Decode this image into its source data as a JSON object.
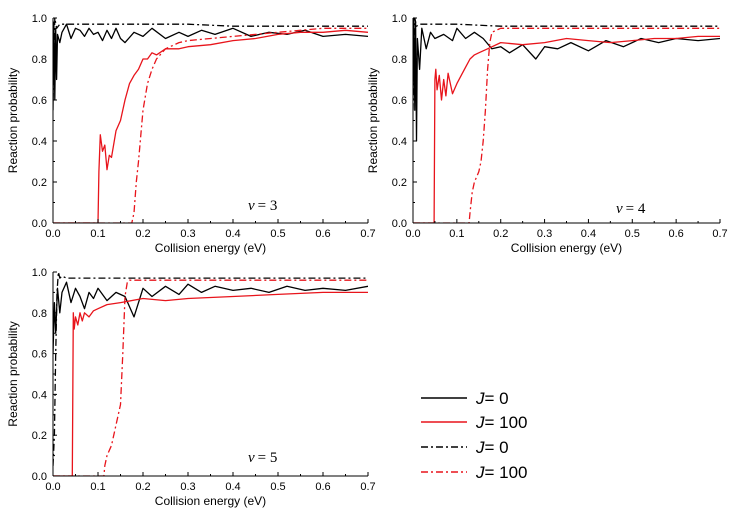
{
  "chart_data": {
    "type": "line",
    "legend": {
      "position": "bottom-right",
      "entries": [
        {
          "symbol": "J",
          "text": "= 0",
          "color": "#000000",
          "style": "solid"
        },
        {
          "symbol": "J",
          "text": "= 100",
          "color": "#e8141b",
          "style": "solid"
        },
        {
          "symbol": "J",
          "text": "= 0",
          "color": "#000000",
          "style": "dashdot"
        },
        {
          "symbol": "J",
          "text": "= 100",
          "color": "#e8141b",
          "style": "dashdot"
        }
      ]
    },
    "panels": [
      {
        "label_var": "v",
        "label_value": "= 3",
        "xlabel": "Collision energy (eV)",
        "ylabel": "Reaction probability",
        "xlim": [
          0.0,
          0.7
        ],
        "ylim": [
          0.0,
          1.0
        ],
        "xticks": [
          "0.0",
          "0.1",
          "0.2",
          "0.3",
          "0.4",
          "0.5",
          "0.6",
          "0.7"
        ],
        "yticks": [
          "0.0",
          "0.2",
          "0.4",
          "0.6",
          "0.8",
          "1.0"
        ],
        "series": [
          {
            "name": "J=0 (solid)",
            "color": "#000000",
            "style": "solid",
            "x": [
              0.0,
              0.002,
              0.004,
              0.006,
              0.008,
              0.01,
              0.015,
              0.02,
              0.03,
              0.04,
              0.05,
              0.06,
              0.07,
              0.08,
              0.09,
              0.1,
              0.11,
              0.12,
              0.13,
              0.14,
              0.15,
              0.16,
              0.18,
              0.2,
              0.22,
              0.25,
              0.28,
              0.3,
              0.33,
              0.36,
              0.4,
              0.44,
              0.48,
              0.52,
              0.56,
              0.6,
              0.65,
              0.7
            ],
            "y": [
              0.55,
              0.98,
              0.6,
              0.95,
              0.7,
              0.92,
              0.88,
              0.93,
              0.97,
              0.9,
              0.95,
              0.94,
              0.91,
              0.95,
              0.92,
              0.93,
              0.89,
              0.94,
              0.9,
              0.95,
              0.9,
              0.88,
              0.93,
              0.91,
              0.95,
              0.9,
              0.93,
              0.91,
              0.94,
              0.92,
              0.95,
              0.91,
              0.93,
              0.92,
              0.94,
              0.91,
              0.92,
              0.91
            ]
          },
          {
            "name": "J=100 (solid)",
            "color": "#e8141b",
            "style": "solid",
            "x": [
              0.0,
              0.1,
              0.102,
              0.105,
              0.11,
              0.115,
              0.12,
              0.125,
              0.13,
              0.14,
              0.15,
              0.16,
              0.17,
              0.18,
              0.19,
              0.2,
              0.21,
              0.22,
              0.23,
              0.25,
              0.28,
              0.3,
              0.35,
              0.4,
              0.45,
              0.5,
              0.55,
              0.6,
              0.65,
              0.7
            ],
            "y": [
              0.0,
              0.0,
              0.25,
              0.43,
              0.35,
              0.38,
              0.26,
              0.33,
              0.32,
              0.45,
              0.5,
              0.6,
              0.68,
              0.72,
              0.75,
              0.8,
              0.8,
              0.83,
              0.82,
              0.85,
              0.85,
              0.86,
              0.87,
              0.89,
              0.9,
              0.92,
              0.93,
              0.93,
              0.94,
              0.93
            ]
          },
          {
            "name": "J=0 (dash-dot)",
            "color": "#000000",
            "style": "dashdot",
            "x": [
              0.0,
              0.004,
              0.008,
              0.015,
              0.02,
              0.05,
              0.1,
              0.2,
              0.3,
              0.4,
              0.5,
              0.6,
              0.7
            ],
            "y": [
              0.6,
              1.0,
              0.95,
              0.97,
              0.97,
              0.97,
              0.97,
              0.97,
              0.97,
              0.96,
              0.96,
              0.96,
              0.96
            ]
          },
          {
            "name": "J=100 (dash-dot)",
            "color": "#e8141b",
            "style": "dashdot",
            "x": [
              0.0,
              0.175,
              0.18,
              0.185,
              0.19,
              0.2,
              0.21,
              0.22,
              0.23,
              0.25,
              0.28,
              0.3,
              0.35,
              0.4,
              0.45,
              0.5,
              0.55,
              0.6,
              0.65,
              0.7
            ],
            "y": [
              0.0,
              0.0,
              0.05,
              0.2,
              0.3,
              0.55,
              0.68,
              0.75,
              0.8,
              0.85,
              0.88,
              0.89,
              0.9,
              0.91,
              0.92,
              0.93,
              0.94,
              0.95,
              0.95,
              0.95
            ]
          }
        ]
      },
      {
        "label_var": "v",
        "label_value": "= 4",
        "xlabel": "Collision energy (eV)",
        "ylabel": "Reaction probability",
        "xlim": [
          0.0,
          0.7
        ],
        "ylim": [
          0.0,
          1.0
        ],
        "xticks": [
          "0.0",
          "0.1",
          "0.2",
          "0.3",
          "0.4",
          "0.5",
          "0.6",
          "0.7"
        ],
        "yticks": [
          "0.0",
          "0.2",
          "0.4",
          "0.6",
          "0.8",
          "1.0"
        ],
        "series": [
          {
            "name": "J=0 (solid)",
            "color": "#000000",
            "style": "solid",
            "x": [
              0.0,
              0.002,
              0.004,
              0.006,
              0.008,
              0.01,
              0.015,
              0.02,
              0.03,
              0.04,
              0.05,
              0.07,
              0.09,
              0.1,
              0.12,
              0.14,
              0.16,
              0.18,
              0.2,
              0.22,
              0.25,
              0.28,
              0.3,
              0.33,
              0.36,
              0.4,
              0.44,
              0.48,
              0.52,
              0.56,
              0.6,
              0.65,
              0.7
            ],
            "y": [
              0.6,
              1.0,
              0.55,
              0.98,
              0.4,
              0.9,
              0.75,
              0.95,
              0.85,
              0.93,
              0.9,
              0.92,
              0.89,
              0.95,
              0.9,
              0.93,
              0.9,
              0.85,
              0.86,
              0.83,
              0.87,
              0.8,
              0.86,
              0.85,
              0.88,
              0.84,
              0.89,
              0.86,
              0.9,
              0.88,
              0.9,
              0.89,
              0.9
            ]
          },
          {
            "name": "J=100 (solid)",
            "color": "#e8141b",
            "style": "solid",
            "x": [
              0.0,
              0.048,
              0.05,
              0.052,
              0.055,
              0.06,
              0.065,
              0.07,
              0.075,
              0.08,
              0.09,
              0.1,
              0.11,
              0.12,
              0.13,
              0.14,
              0.15,
              0.17,
              0.2,
              0.25,
              0.3,
              0.35,
              0.4,
              0.45,
              0.5,
              0.55,
              0.6,
              0.65,
              0.7
            ],
            "y": [
              0.0,
              0.0,
              0.7,
              0.75,
              0.65,
              0.72,
              0.6,
              0.7,
              0.62,
              0.73,
              0.63,
              0.68,
              0.72,
              0.76,
              0.8,
              0.82,
              0.83,
              0.85,
              0.88,
              0.87,
              0.88,
              0.9,
              0.89,
              0.88,
              0.89,
              0.9,
              0.9,
              0.91,
              0.91
            ]
          },
          {
            "name": "J=0 (dash-dot)",
            "color": "#000000",
            "style": "dashdot",
            "x": [
              0.0,
              0.004,
              0.008,
              0.015,
              0.02,
              0.05,
              0.1,
              0.2,
              0.3,
              0.4,
              0.5,
              0.6,
              0.7
            ],
            "y": [
              0.55,
              1.0,
              0.96,
              0.97,
              0.97,
              0.97,
              0.97,
              0.96,
              0.96,
              0.96,
              0.96,
              0.96,
              0.96
            ]
          },
          {
            "name": "J=100 (dash-dot)",
            "color": "#e8141b",
            "style": "dashdot",
            "x": [
              0.0,
              0.128,
              0.13,
              0.135,
              0.14,
              0.15,
              0.155,
              0.16,
              0.165,
              0.17,
              0.175,
              0.18,
              0.2,
              0.25,
              0.3,
              0.4,
              0.5,
              0.6,
              0.7
            ],
            "y": [
              0.0,
              0.0,
              0.05,
              0.15,
              0.2,
              0.25,
              0.3,
              0.4,
              0.55,
              0.75,
              0.88,
              0.93,
              0.95,
              0.95,
              0.95,
              0.95,
              0.95,
              0.95,
              0.95
            ]
          }
        ]
      },
      {
        "label_var": "v",
        "label_value": "= 5",
        "xlabel": "Collision energy (eV)",
        "ylabel": "Reaction probability",
        "xlim": [
          0.0,
          0.7
        ],
        "ylim": [
          0.0,
          1.0
        ],
        "xticks": [
          "0.0",
          "0.1",
          "0.2",
          "0.3",
          "0.4",
          "0.5",
          "0.6",
          "0.7"
        ],
        "yticks": [
          "0.0",
          "0.2",
          "0.4",
          "0.6",
          "0.8",
          "1.0"
        ],
        "series": [
          {
            "name": "J=0 (solid)",
            "color": "#000000",
            "style": "solid",
            "x": [
              0.0,
              0.003,
              0.006,
              0.01,
              0.015,
              0.02,
              0.03,
              0.04,
              0.05,
              0.06,
              0.07,
              0.08,
              0.09,
              0.1,
              0.12,
              0.14,
              0.16,
              0.18,
              0.2,
              0.22,
              0.25,
              0.28,
              0.3,
              0.33,
              0.36,
              0.4,
              0.44,
              0.48,
              0.52,
              0.56,
              0.6,
              0.65,
              0.7
            ],
            "y": [
              0.6,
              0.85,
              0.7,
              0.92,
              0.8,
              0.9,
              0.95,
              0.85,
              0.92,
              0.88,
              0.82,
              0.9,
              0.87,
              0.92,
              0.86,
              0.9,
              0.88,
              0.78,
              0.92,
              0.88,
              0.93,
              0.89,
              0.94,
              0.9,
              0.93,
              0.91,
              0.92,
              0.9,
              0.93,
              0.91,
              0.92,
              0.91,
              0.93
            ]
          },
          {
            "name": "J=100 (solid)",
            "color": "#e8141b",
            "style": "solid",
            "x": [
              0.0,
              0.043,
              0.045,
              0.047,
              0.05,
              0.055,
              0.06,
              0.065,
              0.07,
              0.08,
              0.09,
              0.1,
              0.12,
              0.15,
              0.2,
              0.25,
              0.3,
              0.4,
              0.5,
              0.6,
              0.7
            ],
            "y": [
              0.0,
              0.0,
              0.8,
              0.72,
              0.78,
              0.74,
              0.8,
              0.76,
              0.8,
              0.78,
              0.81,
              0.82,
              0.84,
              0.85,
              0.87,
              0.86,
              0.87,
              0.88,
              0.89,
              0.9,
              0.9
            ]
          },
          {
            "name": "J=0 (dash-dot)",
            "color": "#000000",
            "style": "dashdot",
            "x": [
              0.0,
              0.003,
              0.006,
              0.009,
              0.012,
              0.015,
              0.02,
              0.03,
              0.05,
              0.1,
              0.2,
              0.3,
              0.4,
              0.5,
              0.6,
              0.7
            ],
            "y": [
              0.05,
              0.2,
              0.6,
              0.9,
              1.0,
              0.97,
              0.98,
              0.97,
              0.97,
              0.97,
              0.97,
              0.97,
              0.97,
              0.97,
              0.97,
              0.97
            ]
          },
          {
            "name": "J=100 (dash-dot)",
            "color": "#e8141b",
            "style": "dashdot",
            "x": [
              0.0,
              0.113,
              0.115,
              0.12,
              0.13,
              0.14,
              0.15,
              0.155,
              0.16,
              0.165,
              0.17,
              0.18,
              0.2,
              0.25,
              0.3,
              0.4,
              0.5,
              0.6,
              0.7
            ],
            "y": [
              0.0,
              0.0,
              0.05,
              0.1,
              0.15,
              0.25,
              0.35,
              0.6,
              0.88,
              0.95,
              0.96,
              0.96,
              0.96,
              0.96,
              0.96,
              0.96,
              0.96,
              0.96,
              0.96
            ]
          }
        ]
      }
    ]
  }
}
